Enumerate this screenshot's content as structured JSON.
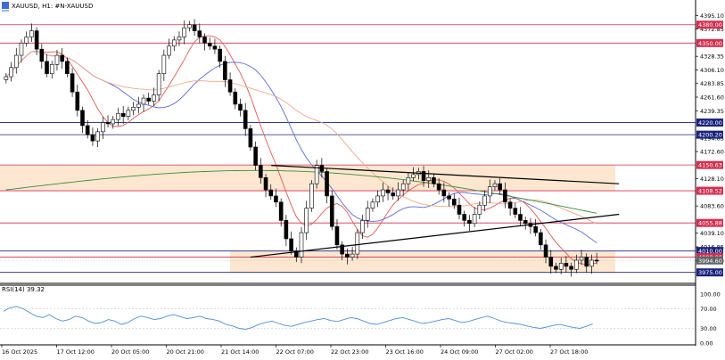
{
  "header": {
    "symbol_line": "XAUUSD, H1:  #N-XAUUSD"
  },
  "rsi_panel": {
    "label": "RSI(14) 39.32",
    "levels": [
      "100.00",
      "70.00",
      "30.00",
      "0.00"
    ]
  },
  "price_axis": {
    "tick_labels": [
      "4395.10",
      "4372.85",
      "4328.35",
      "4306.10",
      "4283.85",
      "4261.60",
      "4239.35",
      "4194.85",
      "4172.60",
      "4128.10",
      "4083.60",
      "4039.10",
      "4016.85",
      "3994.60"
    ]
  },
  "horizontal_levels": [
    {
      "value": 4380.0,
      "label": "4380.00",
      "color": "#d32f4f"
    },
    {
      "value": 4350.0,
      "label": "4350.00",
      "color": "#d32f4f"
    },
    {
      "value": 4220.0,
      "label": "4220.00",
      "color": "#1a237e"
    },
    {
      "value": 4200.2,
      "label": "4200.20",
      "color": "#1a237e"
    },
    {
      "value": 4150.63,
      "label": "4150.63",
      "color": "#d32f4f"
    },
    {
      "value": 4108.52,
      "label": "4108.52",
      "color": "#d32f4f"
    },
    {
      "value": 4055.88,
      "label": "4055.88",
      "color": "#d32f4f"
    },
    {
      "value": 4010.0,
      "label": "4010.00",
      "color": "#1a237e"
    },
    {
      "value": 4000.0,
      "label": "4000.00",
      "color": "#d32f4f"
    },
    {
      "value": 3975.0,
      "label": "3975.00",
      "color": "#1a237e"
    }
  ],
  "current_price": {
    "value": 3994.6,
    "label": "3994.60",
    "color": "#5f6368"
  },
  "time_axis": {
    "labels": [
      "16 Oct 2025",
      "17 Oct 12:00",
      "20 Oct 05:00",
      "20 Oct 21:00",
      "21 Oct 14:00",
      "22 Oct 07:00",
      "22 Oct 23:00",
      "23 Oct 16:00",
      "24 Oct 09:00",
      "27 Oct 02:00",
      "27 Oct 18:00"
    ]
  },
  "chart_data": {
    "type": "candlestick",
    "ylim": [
      3960,
      4400
    ],
    "rsi_ylim": [
      0,
      100
    ],
    "rsi_levels": [
      30,
      70
    ],
    "zones": [
      {
        "from": 4108.52,
        "to": 4150.63,
        "color": "#fde3c8"
      },
      {
        "from": 3975.0,
        "to": 4010.0,
        "color": "#fde3c8"
      }
    ],
    "trendlines": [
      {
        "start": [
          0.39,
          4150
        ],
        "end": [
          0.89,
          4120
        ]
      },
      {
        "start": [
          0.36,
          4000
        ],
        "end": [
          0.89,
          4070
        ]
      }
    ],
    "ma_colors": {
      "fast": "#e05a4f",
      "mid": "#5b6cd6",
      "slow": "#f0a88a",
      "long": "#3a8c3a"
    },
    "candle_colors": {
      "up": "#ffffff",
      "down": "#000000",
      "wick": "#000000"
    },
    "close_series": [
      4295,
      4310,
      4330,
      4350,
      4360,
      4370,
      4340,
      4320,
      4300,
      4315,
      4330,
      4320,
      4300,
      4270,
      4240,
      4215,
      4200,
      4190,
      4205,
      4220,
      4218,
      4225,
      4235,
      4230,
      4240,
      4245,
      4250,
      4260,
      4255,
      4265,
      4300,
      4330,
      4345,
      4355,
      4360,
      4375,
      4380,
      4370,
      4360,
      4350,
      4345,
      4340,
      4320,
      4290,
      4270,
      4250,
      4240,
      4210,
      4180,
      4150,
      4130,
      4110,
      4100,
      4090,
      4060,
      4030,
      4010,
      4000,
      4040,
      4080,
      4120,
      4150,
      4140,
      4100,
      4050,
      4020,
      4005,
      4000,
      4005,
      4040,
      4060,
      4080,
      4090,
      4100,
      4110,
      4105,
      4100,
      4110,
      4120,
      4130,
      4135,
      4140,
      4125,
      4130,
      4120,
      4110,
      4100,
      4095,
      4085,
      4070,
      4060,
      4055,
      4070,
      4085,
      4100,
      4115,
      4120,
      4110,
      4090,
      4080,
      4070,
      4060,
      4055,
      4050,
      4040,
      4020,
      4000,
      3985,
      3980,
      3990,
      3985,
      3980,
      3995,
      4000,
      3985,
      3995,
      3994.6
    ],
    "rsi_series": [
      65,
      72,
      75,
      70,
      62,
      55,
      52,
      58,
      50,
      45,
      48,
      55,
      52,
      45,
      40,
      42,
      48,
      45,
      38,
      42,
      50,
      55,
      52,
      48,
      50,
      55,
      58,
      54,
      50,
      52,
      55,
      50,
      48,
      45,
      38,
      35,
      30,
      28,
      32,
      38,
      42,
      45,
      40,
      36,
      34,
      38,
      42,
      45,
      48,
      50,
      46,
      44,
      48,
      52,
      50,
      45,
      40,
      38,
      42,
      46,
      50,
      52,
      48,
      44,
      40,
      42,
      45,
      48,
      50,
      46,
      42,
      44,
      48,
      52,
      55,
      50,
      45,
      42,
      40,
      38,
      35,
      32,
      30,
      33,
      36,
      38,
      35,
      32,
      30,
      34,
      39
    ]
  }
}
